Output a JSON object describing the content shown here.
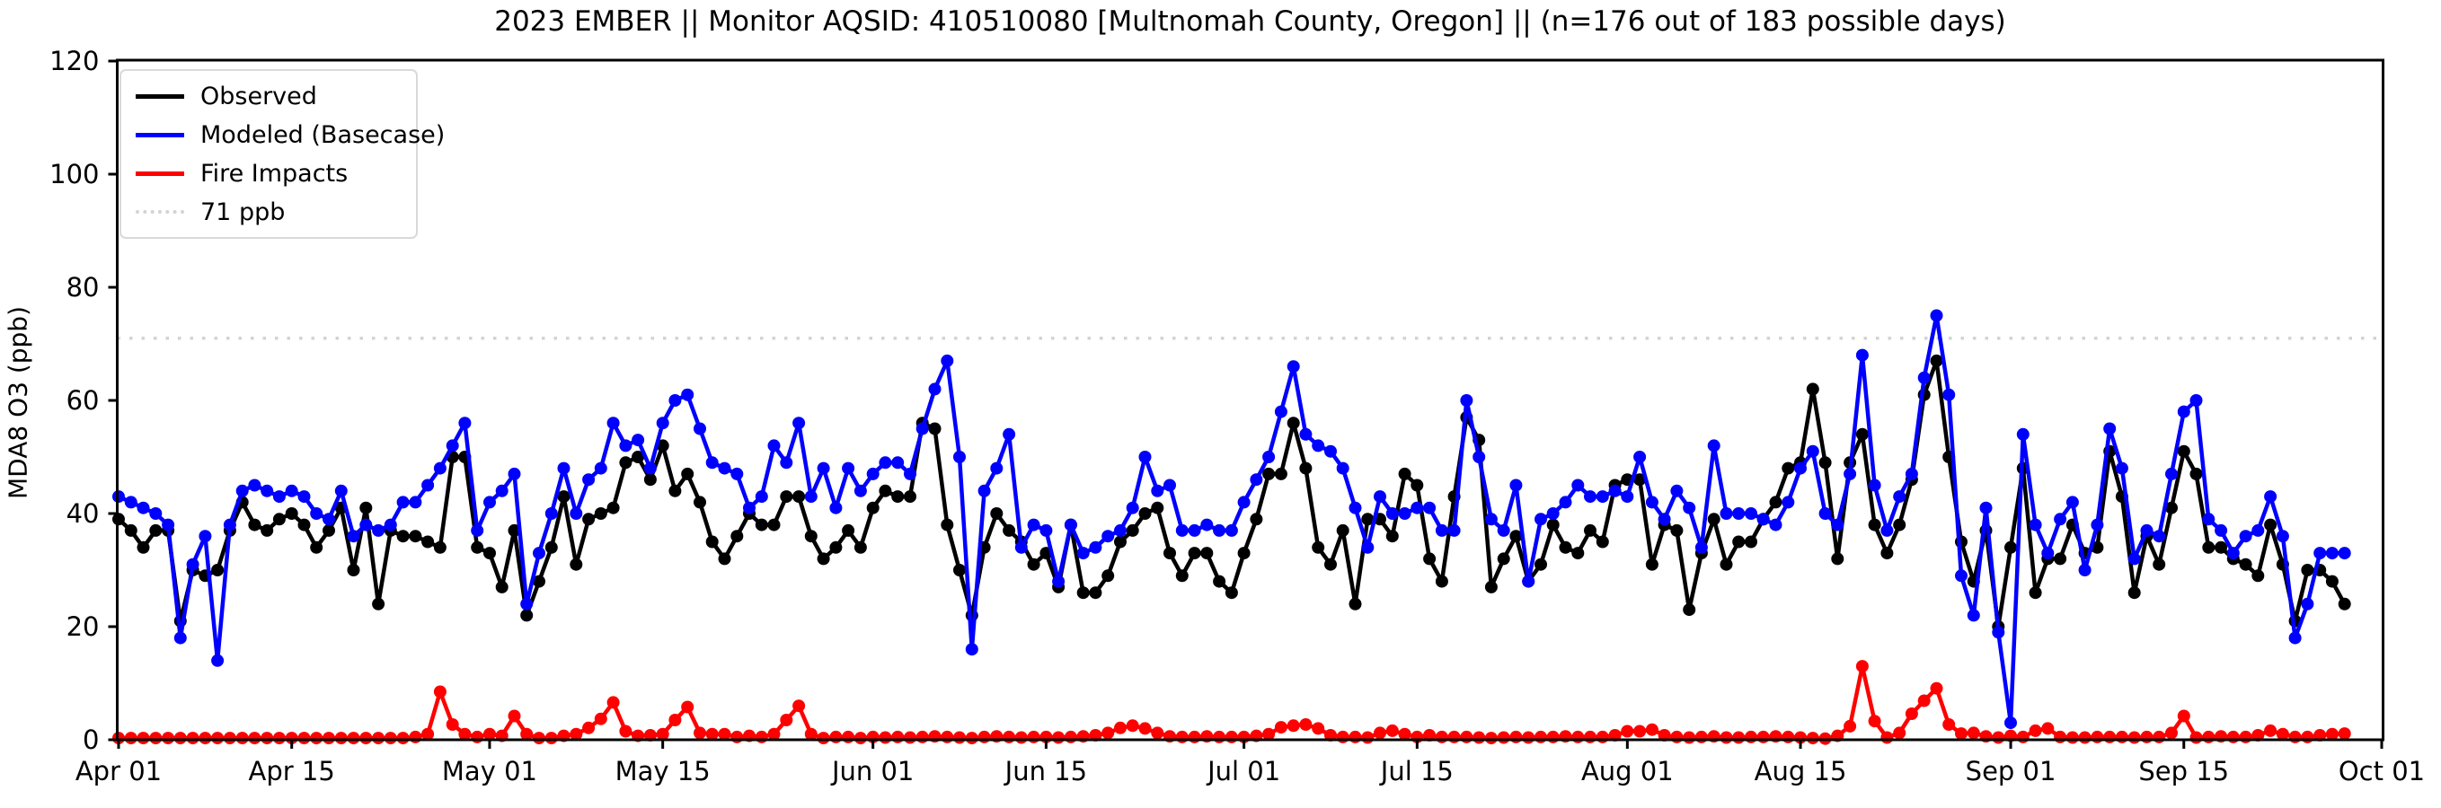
{
  "page": {
    "background": "#ffffff"
  },
  "chart_data": {
    "type": "line",
    "title": "2023 EMBER || Monitor AQSID: 410510080 [Multnomah County, Oregon] || (n=176 out of 183 possible days)",
    "xlabel": "",
    "ylabel": "MDA8 O3 (ppb)",
    "ylim": [
      0,
      120
    ],
    "yticks": [
      0,
      20,
      40,
      60,
      80,
      100,
      120
    ],
    "xlim_days": [
      0,
      183
    ],
    "xticks": [
      {
        "day": 0,
        "label": "Apr 01"
      },
      {
        "day": 14,
        "label": "Apr 15"
      },
      {
        "day": 30,
        "label": "May 01"
      },
      {
        "day": 44,
        "label": "May 15"
      },
      {
        "day": 61,
        "label": "Jun 01"
      },
      {
        "day": 75,
        "label": "Jun 15"
      },
      {
        "day": 91,
        "label": "Jul 01"
      },
      {
        "day": 105,
        "label": "Jul 15"
      },
      {
        "day": 122,
        "label": "Aug 01"
      },
      {
        "day": 136,
        "label": "Aug 15"
      },
      {
        "day": 153,
        "label": "Sep 01"
      },
      {
        "day": 167,
        "label": "Sep 15"
      },
      {
        "day": 183,
        "label": "Oct 01"
      }
    ],
    "grid": false,
    "legend_position": "upper left",
    "ref_line": {
      "value": 71,
      "label": "71 ppb",
      "color": "#d3d3d3",
      "style": "dotted"
    },
    "legend": {
      "entries": [
        {
          "label": "Observed",
          "color": "#000000",
          "style": "solid"
        },
        {
          "label": "Modeled (Basecase)",
          "color": "#0000ff",
          "style": "solid"
        },
        {
          "label": "Fire Impacts",
          "color": "#ff0000",
          "style": "solid"
        },
        {
          "label": "71 ppb",
          "color": "#d3d3d3",
          "style": "dotted"
        }
      ]
    },
    "start_day_label": "Apr 01",
    "end_day_label": "Sep 28",
    "n_points": 181,
    "series": [
      {
        "name": "Observed",
        "color": "#000000",
        "marker": "circle",
        "values": [
          39,
          37,
          34,
          37,
          37,
          21,
          30,
          29,
          30,
          37,
          42,
          38,
          37,
          39,
          40,
          38,
          34,
          37,
          41,
          30,
          41,
          24,
          37,
          36,
          36,
          35,
          34,
          50,
          50,
          34,
          33,
          27,
          37,
          22,
          28,
          34,
          43,
          31,
          39,
          40,
          41,
          49,
          50,
          46,
          52,
          44,
          47,
          42,
          35,
          32,
          36,
          40,
          38,
          38,
          43,
          43,
          36,
          32,
          34,
          37,
          34,
          41,
          44,
          43,
          43,
          56,
          55,
          38,
          30,
          22,
          34,
          40,
          37,
          35,
          31,
          33,
          27,
          38,
          26,
          26,
          29,
          35,
          37,
          40,
          41,
          33,
          29,
          33,
          33,
          28,
          26,
          33,
          39,
          47,
          47,
          56,
          48,
          34,
          31,
          37,
          24,
          39,
          39,
          36,
          47,
          45,
          32,
          28,
          43,
          57,
          53,
          27,
          32,
          36,
          28,
          31,
          38,
          34,
          33,
          37,
          35,
          45,
          46,
          46,
          31,
          38,
          37,
          23,
          33,
          39,
          31,
          35,
          35,
          39,
          42,
          48,
          49,
          62,
          49,
          32,
          49,
          54,
          38,
          33,
          38,
          46,
          61,
          67,
          50,
          35,
          28,
          37,
          20,
          34,
          48,
          26,
          32,
          32,
          38,
          33,
          34,
          51,
          43,
          26,
          36,
          31,
          41,
          51,
          47,
          34,
          34,
          32,
          31,
          29,
          38,
          31,
          21,
          30,
          30,
          28,
          24
        ]
      },
      {
        "name": "Modeled (Basecase)",
        "color": "#0000ff",
        "marker": "circle",
        "values": [
          43,
          42,
          41,
          40,
          38,
          18,
          31,
          36,
          14,
          38,
          44,
          45,
          44,
          43,
          44,
          43,
          40,
          39,
          44,
          36,
          38,
          37,
          38,
          42,
          42,
          45,
          48,
          52,
          56,
          37,
          42,
          44,
          47,
          24,
          33,
          40,
          48,
          40,
          46,
          48,
          56,
          52,
          53,
          48,
          56,
          60,
          61,
          55,
          49,
          48,
          47,
          41,
          43,
          52,
          49,
          56,
          43,
          48,
          41,
          48,
          44,
          47,
          49,
          49,
          47,
          55,
          62,
          67,
          50,
          16,
          44,
          48,
          54,
          34,
          38,
          37,
          28,
          38,
          33,
          34,
          36,
          37,
          41,
          50,
          44,
          45,
          37,
          37,
          38,
          37,
          37,
          42,
          46,
          50,
          58,
          66,
          54,
          52,
          51,
          48,
          41,
          34,
          43,
          40,
          40,
          41,
          41,
          37,
          37,
          60,
          50,
          39,
          37,
          45,
          28,
          39,
          40,
          42,
          45,
          43,
          43,
          44,
          43,
          50,
          42,
          39,
          44,
          41,
          34,
          52,
          40,
          40,
          40,
          39,
          38,
          42,
          48,
          51,
          40,
          38,
          47,
          68,
          45,
          37,
          43,
          47,
          64,
          75,
          61,
          29,
          22,
          41,
          19,
          3,
          54,
          38,
          33,
          39,
          42,
          30,
          38,
          55,
          48,
          32,
          37,
          36,
          47,
          58,
          60,
          39,
          37,
          33,
          36,
          37,
          43,
          36,
          18,
          24,
          33,
          33,
          33
        ]
      },
      {
        "name": "Fire Impacts",
        "color": "#ff0000",
        "marker": "circle",
        "values": [
          0.3,
          0.3,
          0.3,
          0.3,
          0.3,
          0.3,
          0.3,
          0.3,
          0.3,
          0.3,
          0.3,
          0.3,
          0.3,
          0.3,
          0.3,
          0.3,
          0.3,
          0.3,
          0.3,
          0.3,
          0.3,
          0.3,
          0.3,
          0.3,
          0.5,
          1.0,
          8.5,
          2.7,
          1.0,
          0.5,
          1.0,
          0.7,
          4.2,
          1.0,
          0.3,
          0.3,
          0.7,
          1.0,
          2.1,
          3.7,
          6.6,
          1.5,
          0.7,
          0.8,
          1.0,
          3.5,
          5.8,
          1.2,
          1.0,
          1.0,
          0.5,
          0.7,
          0.5,
          1.0,
          3.5,
          6.0,
          1.0,
          0.3,
          0.5,
          0.5,
          0.3,
          0.5,
          0.4,
          0.5,
          0.4,
          0.5,
          0.6,
          0.5,
          0.4,
          0.3,
          0.5,
          0.6,
          0.5,
          0.4,
          0.5,
          0.5,
          0.4,
          0.5,
          0.6,
          0.8,
          1.2,
          2.1,
          2.5,
          2.0,
          1.2,
          0.6,
          0.5,
          0.5,
          0.6,
          0.5,
          0.5,
          0.5,
          0.7,
          1.0,
          2.2,
          2.5,
          2.7,
          2.0,
          0.8,
          0.5,
          0.5,
          0.4,
          1.2,
          1.6,
          1.0,
          0.5,
          0.8,
          0.5,
          0.5,
          0.5,
          0.4,
          0.3,
          0.4,
          0.5,
          0.4,
          0.5,
          0.5,
          0.6,
          0.5,
          0.5,
          0.5,
          0.8,
          1.5,
          1.5,
          1.8,
          0.8,
          0.5,
          0.4,
          0.5,
          0.6,
          0.4,
          0.4,
          0.5,
          0.5,
          0.6,
          0.5,
          0.4,
          0.3,
          0.2,
          0.7,
          2.4,
          13.0,
          3.3,
          0.4,
          1.2,
          4.6,
          6.9,
          9.1,
          2.7,
          1.1,
          1.2,
          0.6,
          0.4,
          0.7,
          0.5,
          1.6,
          2.0,
          0.5,
          0.4,
          0.4,
          0.5,
          0.5,
          0.5,
          0.4,
          0.5,
          0.5,
          1.2,
          4.2,
          0.4,
          0.5,
          0.6,
          0.5,
          0.5,
          0.8,
          1.6,
          1.0,
          0.5,
          0.5,
          0.8,
          1.0,
          1.1
        ]
      }
    ]
  }
}
